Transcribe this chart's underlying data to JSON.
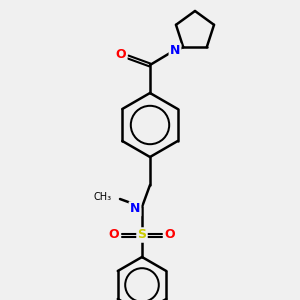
{
  "background_color": "#f0f0f0",
  "bond_color": "#000000",
  "atom_colors": {
    "O": "#ff0000",
    "N": "#0000ff",
    "S": "#cccc00",
    "C": "#000000"
  },
  "figsize": [
    3.0,
    3.0
  ],
  "dpi": 100
}
